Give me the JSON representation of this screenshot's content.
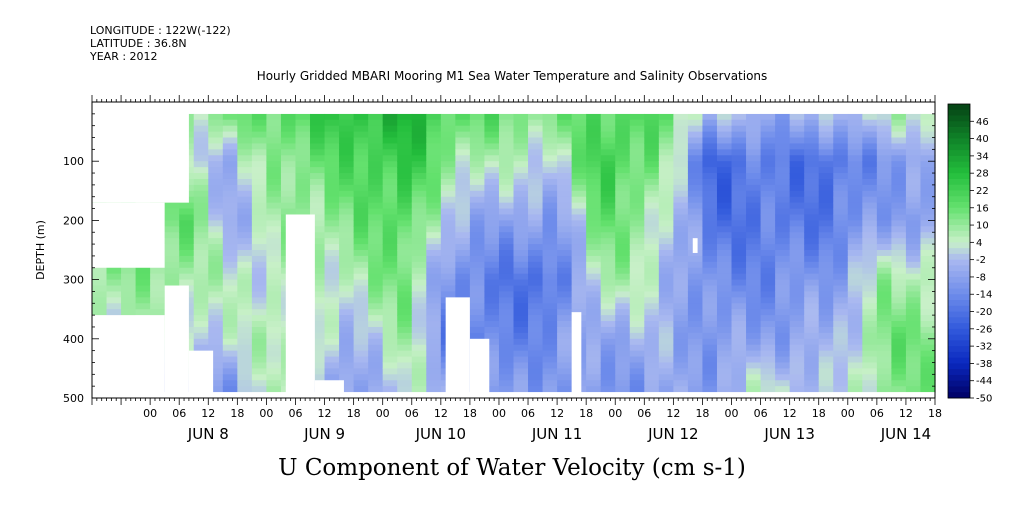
{
  "header": {
    "longitude": "LONGITUDE : 122W(-122)",
    "latitude": "LATITUDE : 36.8N",
    "year": "YEAR : 2012",
    "title": "Hourly Gridded MBARI Mooring M1 Sea Water Temperature and Salinity Observations"
  },
  "chart_data": {
    "type": "heatmap",
    "title": "U Component of Water Velocity (cm s-1)",
    "subtitle": "Hourly Gridded MBARI Mooring M1 Sea Water Temperature and Salinity Observations",
    "ylabel": "DEPTH (m)",
    "ylim": [
      500,
      0
    ],
    "y_ticks": [
      100,
      200,
      300,
      400,
      500
    ],
    "x_start_hour": -12,
    "x_end_hour": 162,
    "hour_tick_labels": [
      "00",
      "06",
      "12",
      "18"
    ],
    "day_labels": [
      "JUN  8",
      "JUN  9",
      "JUN 10",
      "JUN 11",
      "JUN 12",
      "JUN 13",
      "JUN 14"
    ],
    "colorbar": {
      "labels": [
        "46",
        "40",
        "34",
        "28",
        "22",
        "16",
        "10",
        "4",
        "-2",
        "-8",
        "-14",
        "-20",
        "-26",
        "-32",
        "-38",
        "-44",
        "-50"
      ],
      "range": [
        -50,
        52
      ]
    },
    "data_depth_range": [
      20,
      490
    ],
    "grid_hours": 3,
    "grid_depth": 10,
    "anchors": [
      {
        "day": "JUN 8",
        "hour": 7,
        "v": [
          [
            25,
            8
          ],
          [
            100,
            4
          ],
          [
            200,
            18
          ],
          [
            300,
            10
          ],
          [
            400,
            4
          ],
          [
            480,
            -6
          ]
        ]
      },
      {
        "day": "JUN 8",
        "hour": 16,
        "v": [
          [
            25,
            12
          ],
          [
            100,
            -4
          ],
          [
            200,
            -6
          ],
          [
            300,
            4
          ],
          [
            400,
            0
          ],
          [
            480,
            -10
          ]
        ]
      },
      {
        "day": "JUN 9",
        "hour": 27,
        "v": [
          [
            25,
            18
          ],
          [
            100,
            12
          ],
          [
            200,
            8
          ],
          [
            300,
            4
          ],
          [
            400,
            10
          ],
          [
            480,
            8
          ]
        ]
      },
      {
        "day": "JUN 9",
        "hour": 40,
        "v": [
          [
            25,
            25
          ],
          [
            100,
            18
          ],
          [
            200,
            12
          ],
          [
            300,
            6
          ],
          [
            400,
            -4
          ],
          [
            480,
            -12
          ]
        ]
      },
      {
        "day": "JUN 10",
        "hour": 53,
        "v": [
          [
            25,
            30
          ],
          [
            100,
            26
          ],
          [
            200,
            20
          ],
          [
            300,
            14
          ],
          [
            400,
            8
          ],
          [
            480,
            4
          ]
        ]
      },
      {
        "day": "JUN 10",
        "hour": 62,
        "v": [
          [
            25,
            18
          ],
          [
            100,
            10
          ],
          [
            200,
            -4
          ],
          [
            300,
            -14
          ],
          [
            400,
            -16
          ],
          [
            480,
            -8
          ]
        ]
      },
      {
        "day": "JUN 11",
        "hour": 74,
        "v": [
          [
            25,
            14
          ],
          [
            100,
            4
          ],
          [
            200,
            -8
          ],
          [
            300,
            -18
          ],
          [
            400,
            -16
          ],
          [
            480,
            -12
          ]
        ]
      },
      {
        "day": "JUN 11",
        "hour": 84,
        "v": [
          [
            25,
            12
          ],
          [
            100,
            2
          ],
          [
            200,
            -10
          ],
          [
            300,
            -22
          ],
          [
            400,
            -12
          ],
          [
            480,
            -8
          ]
        ]
      },
      {
        "day": "JUN 12",
        "hour": 93,
        "v": [
          [
            25,
            20
          ],
          [
            100,
            24
          ],
          [
            200,
            16
          ],
          [
            300,
            10
          ],
          [
            400,
            -6
          ],
          [
            480,
            -12
          ]
        ]
      },
      {
        "day": "JUN 12",
        "hour": 104,
        "v": [
          [
            25,
            18
          ],
          [
            100,
            14
          ],
          [
            200,
            8
          ],
          [
            300,
            2
          ],
          [
            400,
            -4
          ],
          [
            480,
            -8
          ]
        ]
      },
      {
        "day": "JUN 13",
        "hour": 116,
        "v": [
          [
            25,
            -2
          ],
          [
            100,
            -24
          ],
          [
            200,
            -20
          ],
          [
            300,
            -14
          ],
          [
            400,
            -10
          ],
          [
            480,
            -8
          ]
        ]
      },
      {
        "day": "JUN 13",
        "hour": 128,
        "v": [
          [
            25,
            -6
          ],
          [
            100,
            -16
          ],
          [
            200,
            -18
          ],
          [
            300,
            -14
          ],
          [
            400,
            -8
          ],
          [
            480,
            4
          ]
        ]
      },
      {
        "day": "JUN 14",
        "hour": 140,
        "v": [
          [
            25,
            -4
          ],
          [
            100,
            -22
          ],
          [
            200,
            -18
          ],
          [
            300,
            -10
          ],
          [
            400,
            -6
          ],
          [
            480,
            -4
          ]
        ]
      },
      {
        "day": "JUN 14",
        "hour": 152,
        "v": [
          [
            25,
            4
          ],
          [
            100,
            -10
          ],
          [
            200,
            -8
          ],
          [
            300,
            8
          ],
          [
            400,
            14
          ],
          [
            480,
            12
          ]
        ]
      }
    ],
    "missing": [
      {
        "h0": -12,
        "h1": 8,
        "d0": 0,
        "d1": 170
      },
      {
        "h0": -12,
        "h1": 3,
        "d0": 170,
        "d1": 280
      },
      {
        "h0": -12,
        "h1": 3,
        "d0": 360,
        "d1": 500
      },
      {
        "h0": 3,
        "h1": 8,
        "d0": 310,
        "d1": 500
      },
      {
        "h0": 8,
        "h1": 13,
        "d0": 420,
        "d1": 500
      },
      {
        "h0": 28,
        "h1": 34,
        "d0": 190,
        "d1": 500
      },
      {
        "h0": 34,
        "h1": 40,
        "d0": 470,
        "d1": 500
      },
      {
        "h0": 61,
        "h1": 66,
        "d0": 330,
        "d1": 500
      },
      {
        "h0": 66,
        "h1": 70,
        "d0": 400,
        "d1": 500
      },
      {
        "h0": 87,
        "h1": 89,
        "d0": 355,
        "d1": 500
      },
      {
        "h0": 112,
        "h1": 113,
        "d0": 230,
        "d1": 255
      },
      {
        "h0": 0,
        "h1": 162,
        "d0": 490,
        "d1": 500
      }
    ]
  }
}
